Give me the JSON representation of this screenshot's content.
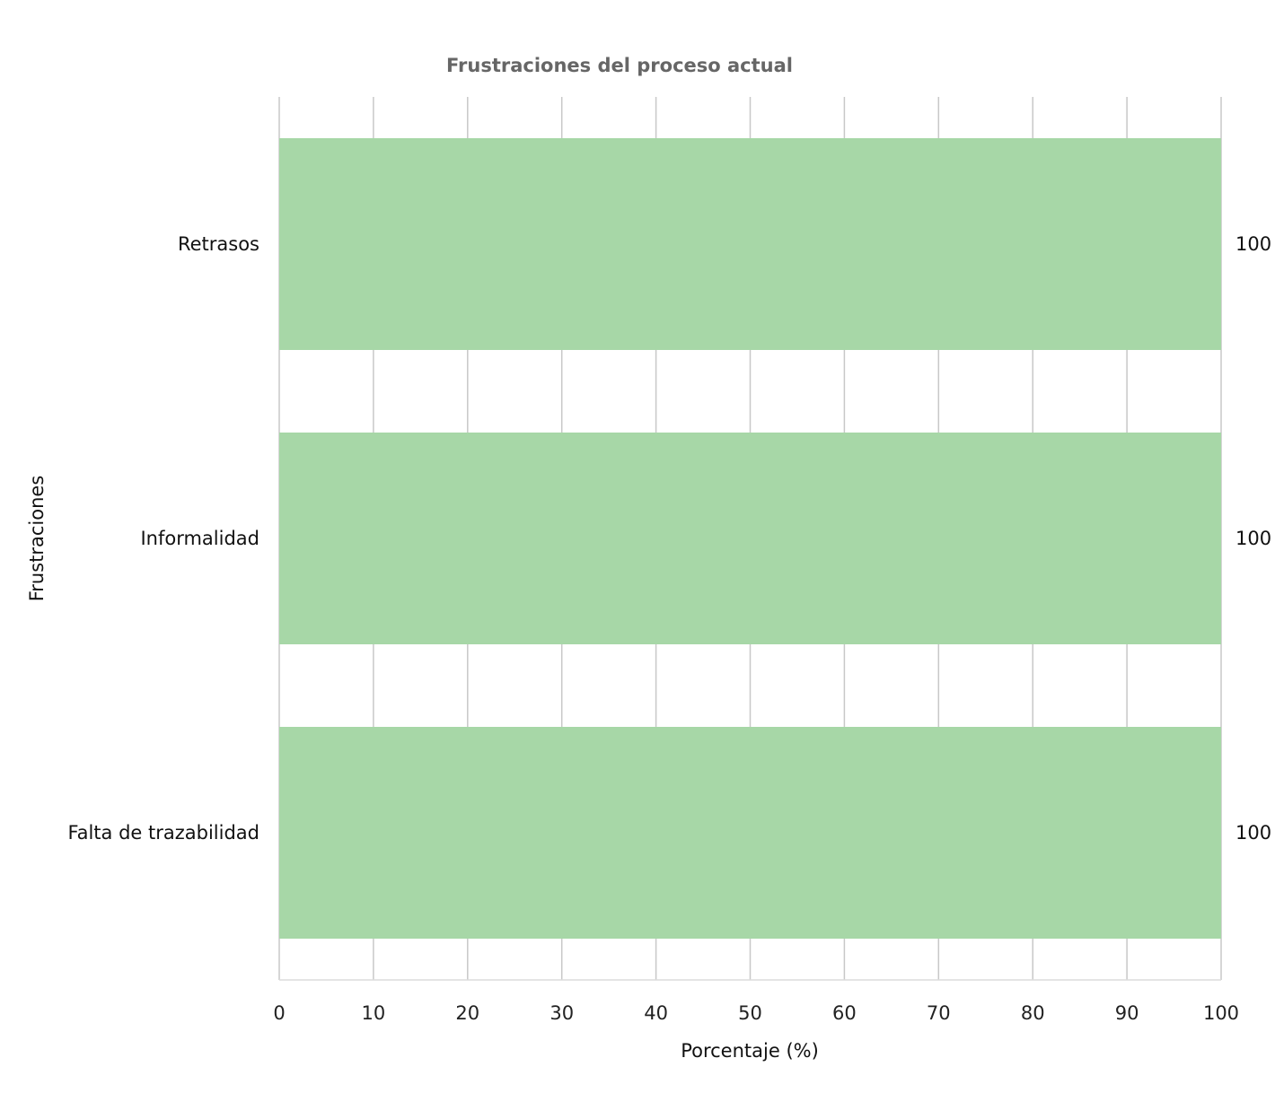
{
  "chart_data": {
    "type": "bar",
    "orientation": "horizontal",
    "title": "Frustraciones del proceso actual",
    "xlabel": "Porcentaje (%)",
    "ylabel": "Frustraciones",
    "categories": [
      "Retrasos",
      "Informalidad",
      "Falta de trazabilidad"
    ],
    "values": [
      100,
      100,
      100
    ],
    "value_labels": [
      "100",
      "100",
      "100"
    ],
    "xlim": [
      0,
      100
    ],
    "xticks": [
      0,
      10,
      20,
      30,
      40,
      50,
      60,
      70,
      80,
      90,
      100
    ],
    "xtick_labels": [
      "0",
      "10",
      "20",
      "30",
      "40",
      "50",
      "60",
      "70",
      "80",
      "90",
      "100"
    ],
    "grid": "vertical",
    "colors": {
      "bar": "#a7d7a7",
      "grid": "#c8c8c8",
      "title": "#666666"
    }
  }
}
